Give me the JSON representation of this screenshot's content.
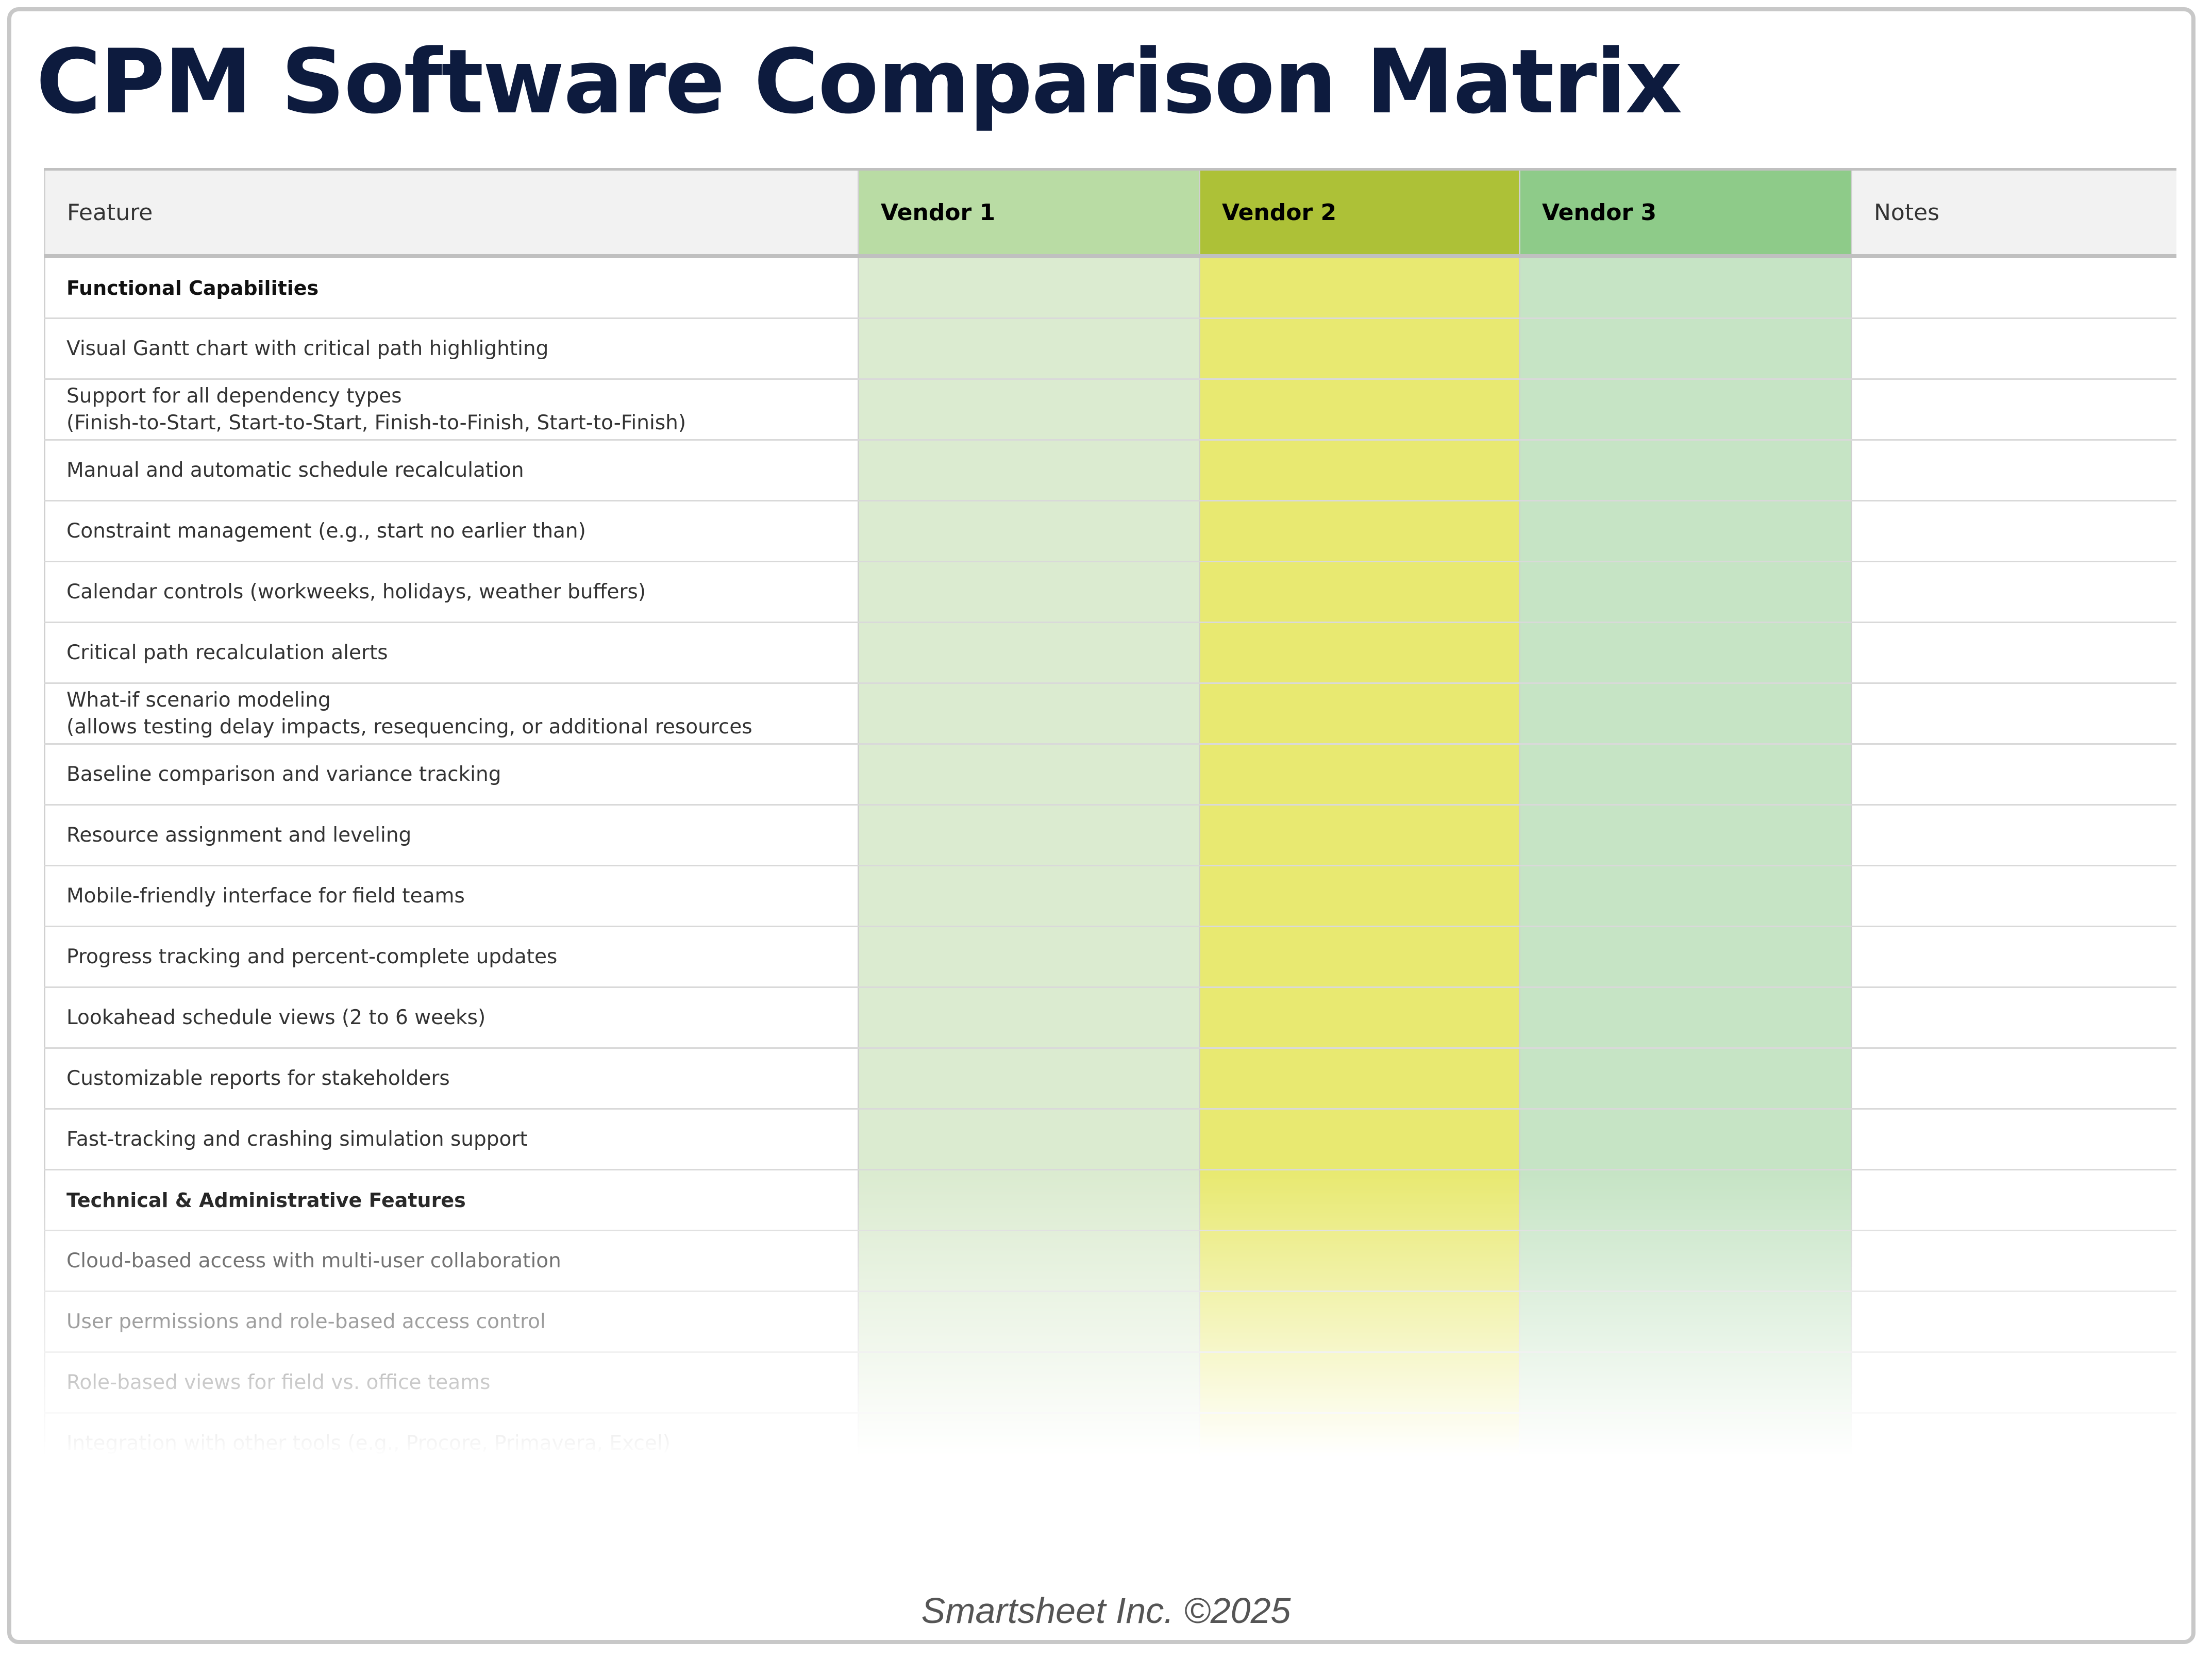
{
  "title": "CPM Software Comparison Matrix",
  "table": {
    "headers": [
      "Feature",
      "Vendor 1",
      "Vendor 2",
      "Vendor 3",
      "Notes"
    ],
    "header_colors": {
      "vendor1": "#b9dca4",
      "vendor2": "#adc137",
      "vendor3": "#8ecb89"
    },
    "rows": [
      {
        "feature": "Functional Capabilities",
        "section": true
      },
      {
        "feature": "Visual Gantt chart with critical path highlighting"
      },
      {
        "feature": "Support for all dependency types\n(Finish-to-Start, Start-to-Start, Finish-to-Finish, Start-to-Finish)"
      },
      {
        "feature": "Manual and automatic schedule recalculation"
      },
      {
        "feature": "Constraint management (e.g., start no earlier than)"
      },
      {
        "feature": "Calendar controls (workweeks, holidays, weather buffers)"
      },
      {
        "feature": "Critical path recalculation alerts"
      },
      {
        "feature": "What-if scenario modeling\n(allows testing delay impacts, resequencing, or additional resources"
      },
      {
        "feature": "Baseline comparison and variance tracking"
      },
      {
        "feature": "Resource assignment and leveling"
      },
      {
        "feature": "Mobile-friendly interface for field teams"
      },
      {
        "feature": "Progress tracking and percent-complete updates"
      },
      {
        "feature": "Lookahead schedule views (2 to 6 weeks)"
      },
      {
        "feature": "Customizable reports for stakeholders"
      },
      {
        "feature": "Fast-tracking and crashing simulation support"
      },
      {
        "feature": "Technical & Administrative Features",
        "section": true
      },
      {
        "feature": "Cloud-based access with multi-user collaboration"
      },
      {
        "feature": "User permissions and role-based access control"
      },
      {
        "feature": "Role-based views for field vs. office teams"
      },
      {
        "feature": "Integration with other tools (e.g., Procore, Primavera, Excel)"
      }
    ]
  },
  "footer": "Smartsheet Inc. ©2025"
}
